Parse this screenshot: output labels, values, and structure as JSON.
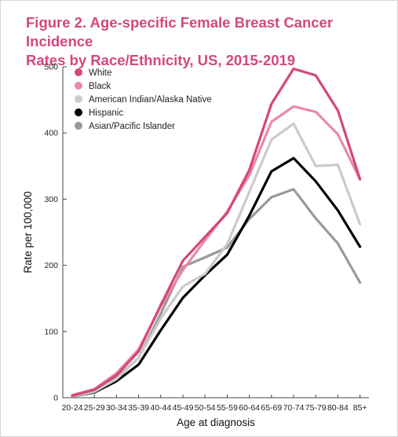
{
  "title_line1": "Figure 2. Age-specific Female Breast Cancer Incidence",
  "title_line2": "Rates by Race/Ethnicity, US, 2015-2019",
  "chart_data": {
    "type": "line",
    "xlabel": "Age at diagnosis",
    "ylabel": "Rate per 100,000",
    "ylim": [
      0,
      500
    ],
    "yticks": [
      0,
      100,
      200,
      300,
      400,
      500
    ],
    "grid": false,
    "legend_position": "top-left",
    "categories": [
      "20-24",
      "25-29",
      "30-34",
      "35-39",
      "40-44",
      "45-49",
      "50-54",
      "55-59",
      "60-64",
      "65-69",
      "70-74",
      "75-79",
      "80-84",
      "85+"
    ],
    "series": [
      {
        "name": "White",
        "color": "#d4477d",
        "values": [
          3,
          12,
          34,
          70,
          140,
          207,
          243,
          279,
          344,
          444,
          497,
          487,
          434,
          330
        ]
      },
      {
        "name": "Black",
        "color": "#e98aaa",
        "values": [
          4,
          13,
          37,
          73,
          138,
          193,
          238,
          281,
          336,
          417,
          440,
          432,
          398,
          330
        ]
      },
      {
        "name": "American Indian/Alaska Native",
        "color": "#cbcbcb",
        "values": [
          2,
          9,
          28,
          60,
          120,
          168,
          187,
          232,
          311,
          390,
          414,
          350,
          352,
          262
        ]
      },
      {
        "name": "Hispanic",
        "color": "#000000",
        "values": [
          2,
          8,
          25,
          50,
          102,
          151,
          185,
          216,
          275,
          342,
          362,
          327,
          283,
          228
        ]
      },
      {
        "name": "Asian/Pacific Islander",
        "color": "#999999",
        "values": [
          2,
          9,
          30,
          60,
          127,
          198,
          212,
          227,
          270,
          303,
          315,
          271,
          233,
          174
        ]
      }
    ]
  }
}
